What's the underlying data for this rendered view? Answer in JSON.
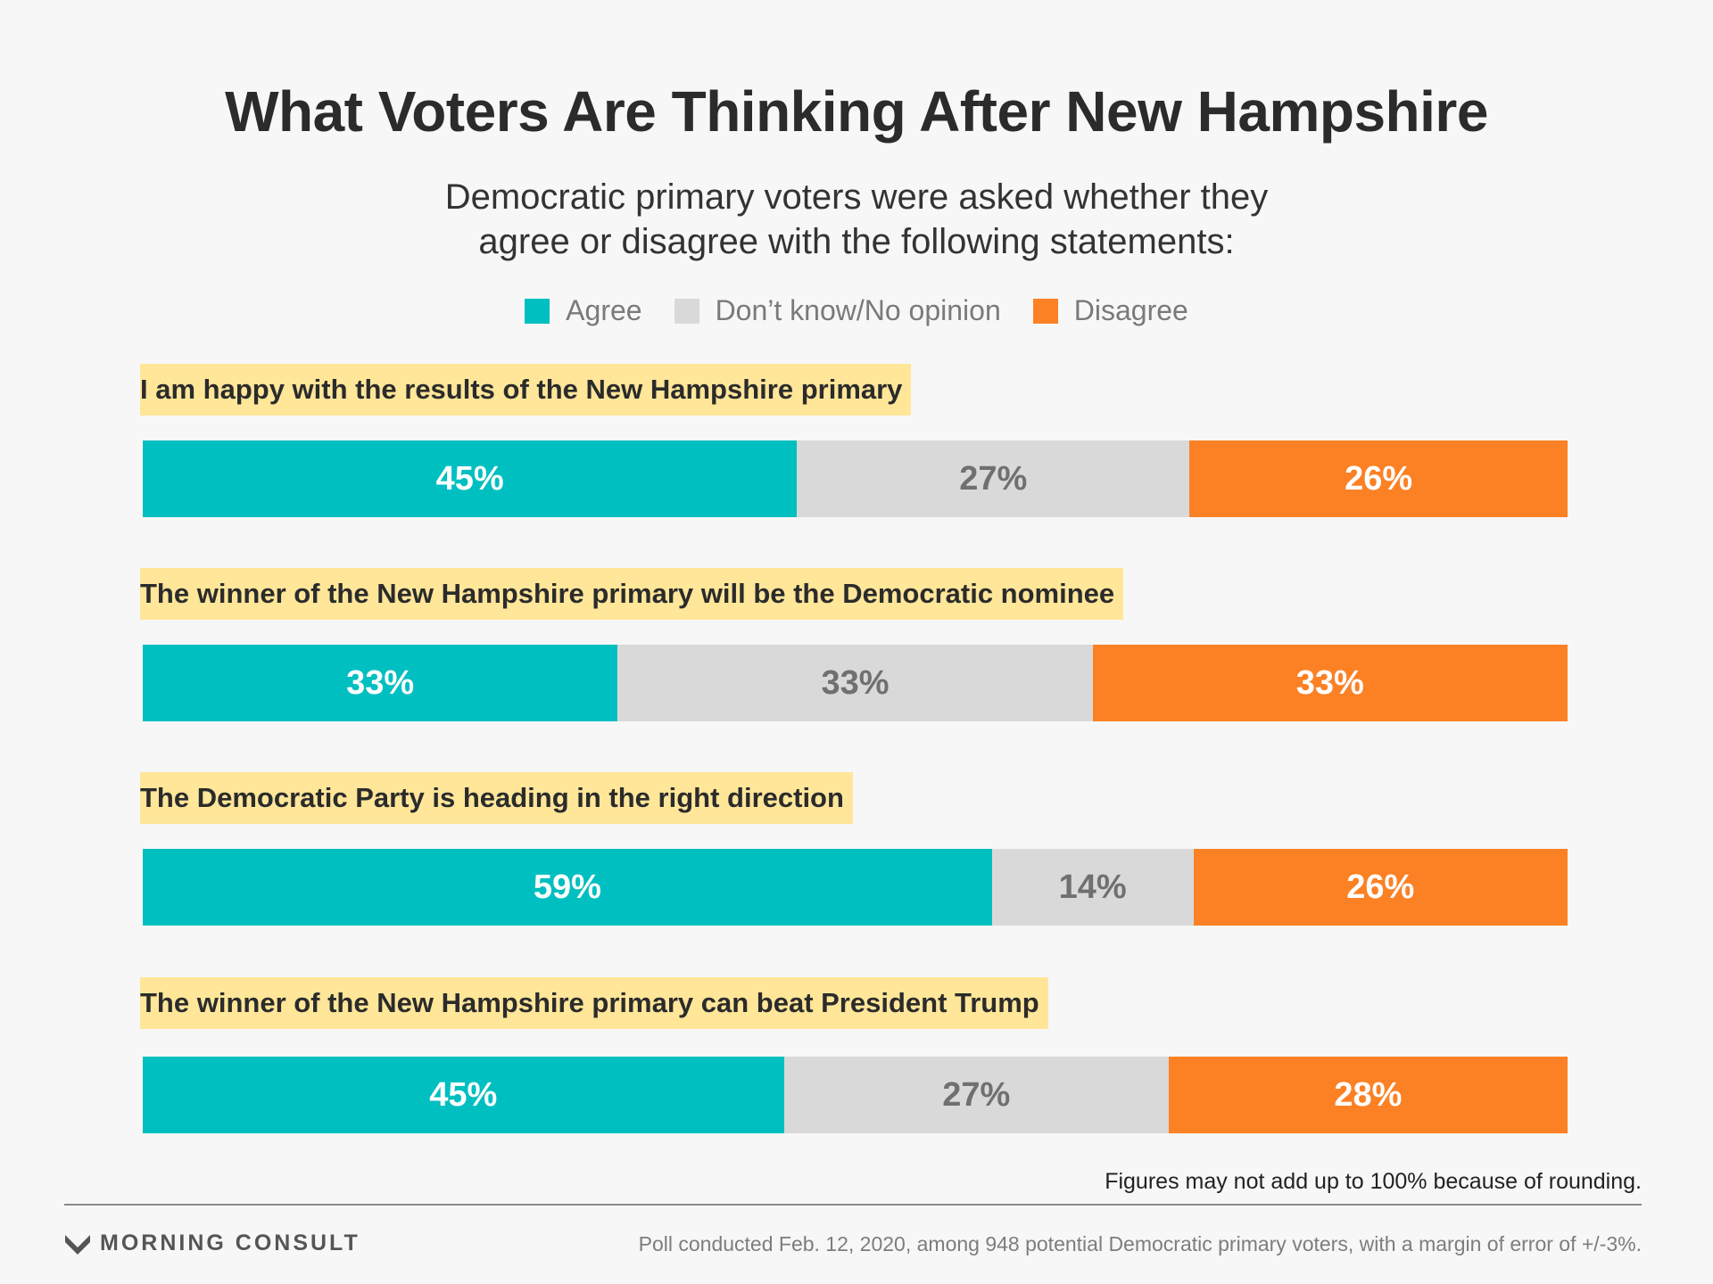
{
  "header": {
    "title": "What Voters Are Thinking After New Hampshire",
    "subtitle_line1": "Democratic primary voters were asked whether they",
    "subtitle_line2": "agree or disagree with the following statements:"
  },
  "colors": {
    "agree": "#00bfc0",
    "neutral": "#d9d9d9",
    "disagree": "#fb8124",
    "highlight": "#ffe699"
  },
  "chart_data": {
    "type": "bar",
    "orientation": "horizontal-stacked",
    "legend": "top-center",
    "grid": false,
    "series_names": [
      "Agree",
      "Don’t know/No opinion",
      "Disagree"
    ],
    "categories": [
      "I am happy with the results of the New Hampshire primary",
      "The winner of the New Hampshire primary will be the Democratic nominee",
      "The Democratic Party is heading in the right direction",
      "The winner of the New Hampshire primary can beat President Trump"
    ],
    "series": [
      {
        "name": "Agree",
        "values": [
          45,
          33,
          59,
          45
        ]
      },
      {
        "name": "Don’t know/No opinion",
        "values": [
          27,
          33,
          14,
          27
        ]
      },
      {
        "name": "Disagree",
        "values": [
          26,
          33,
          26,
          28
        ]
      }
    ],
    "value_suffix": "%"
  },
  "footer": {
    "note": "Figures may not add up to 100% because of rounding.",
    "brand": "MORNING CONSULT",
    "source": "Poll conducted Feb. 12, 2020, among 948 potential Democratic primary voters, with a margin of error of +/-3%."
  }
}
